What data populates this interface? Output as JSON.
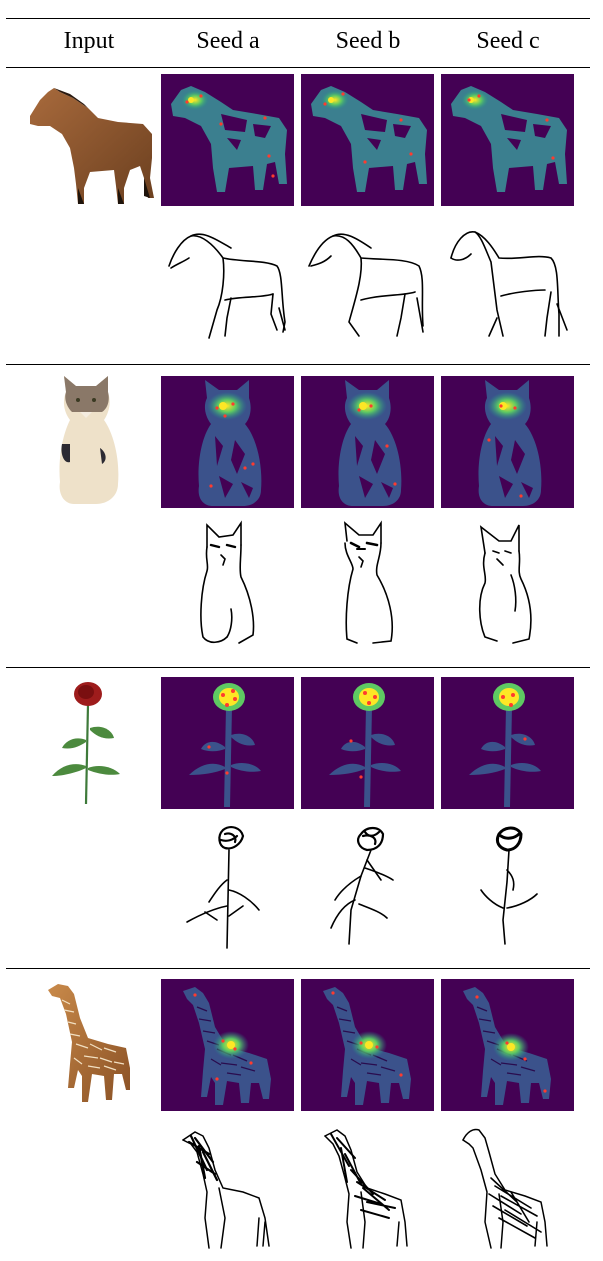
{
  "table": {
    "headers": [
      "Input",
      "Seed a",
      "Seed b",
      "Seed c"
    ]
  },
  "colors": {
    "heatmap_background": "#440154",
    "heatmap_low": "#3b528b",
    "heatmap_mid": "#21918c",
    "heatmap_high": "#5ec962",
    "heatmap_peak": "#fde725",
    "point": "#ff3b2f"
  },
  "rows": [
    {
      "subject": "horse"
    },
    {
      "subject": "cat"
    },
    {
      "subject": "rose"
    },
    {
      "subject": "giraffe"
    }
  ]
}
